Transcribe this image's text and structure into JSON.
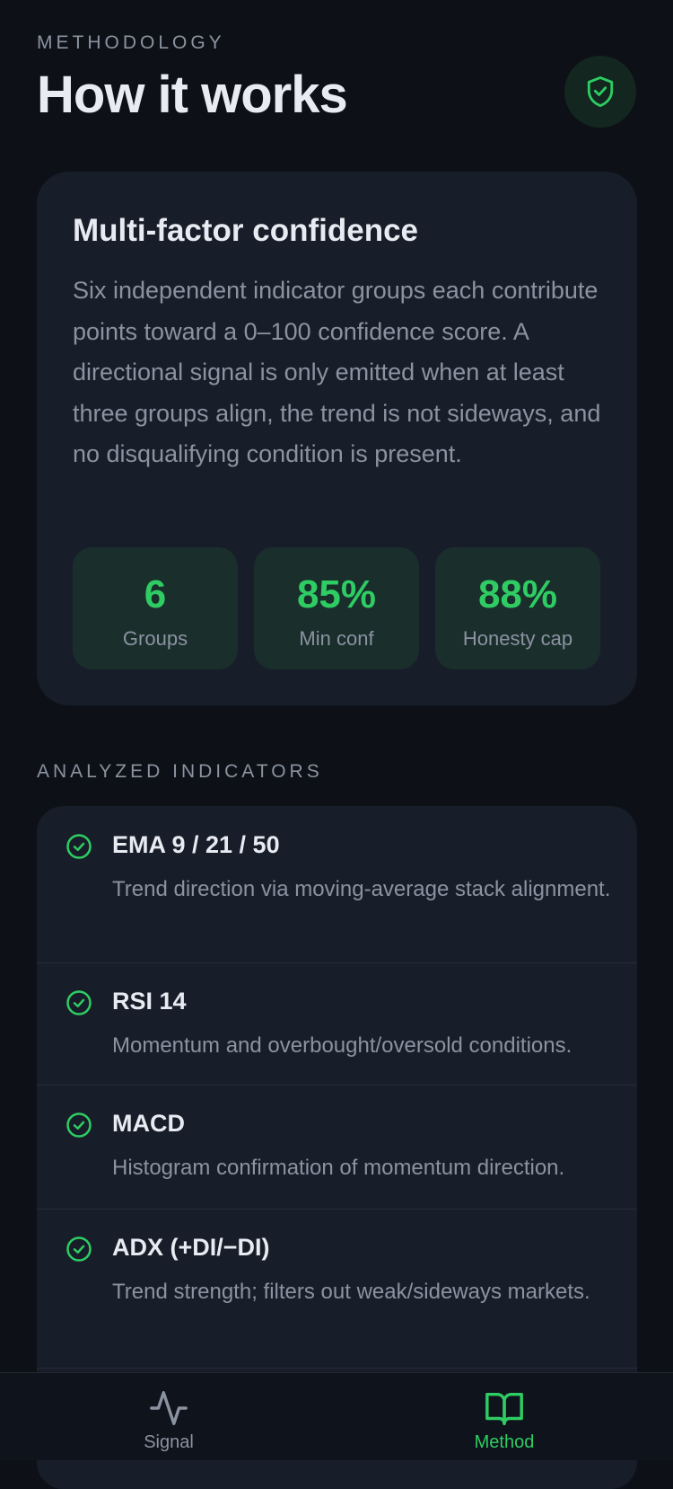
{
  "header": {
    "eyebrow": "METHODOLOGY",
    "title": "How it works"
  },
  "card": {
    "title": "Multi-factor confidence",
    "body": "Six independent indicator groups each contribute points toward a 0–100 confidence score. A directional signal is only emitted when at least three groups align, the trend is not sideways, and no disqualifying condition is present.",
    "stats": [
      {
        "value": "6",
        "label": "Groups"
      },
      {
        "value": "85%",
        "label": "Min conf"
      },
      {
        "value": "88%",
        "label": "Honesty cap"
      }
    ]
  },
  "section_label": "ANALYZED INDICATORS",
  "indicators": [
    {
      "name": "EMA 9 / 21 / 50",
      "description": "Trend direction via moving-average stack alignment."
    },
    {
      "name": "RSI 14",
      "description": "Momentum and overbought/oversold conditions."
    },
    {
      "name": "MACD",
      "description": "Histogram confirmation of momentum direction."
    },
    {
      "name": "ADX (+DI/−DI)",
      "description": "Trend strength; filters out weak/sideways markets."
    }
  ],
  "nav": [
    {
      "label": "Signal"
    },
    {
      "label": "Method"
    }
  ]
}
